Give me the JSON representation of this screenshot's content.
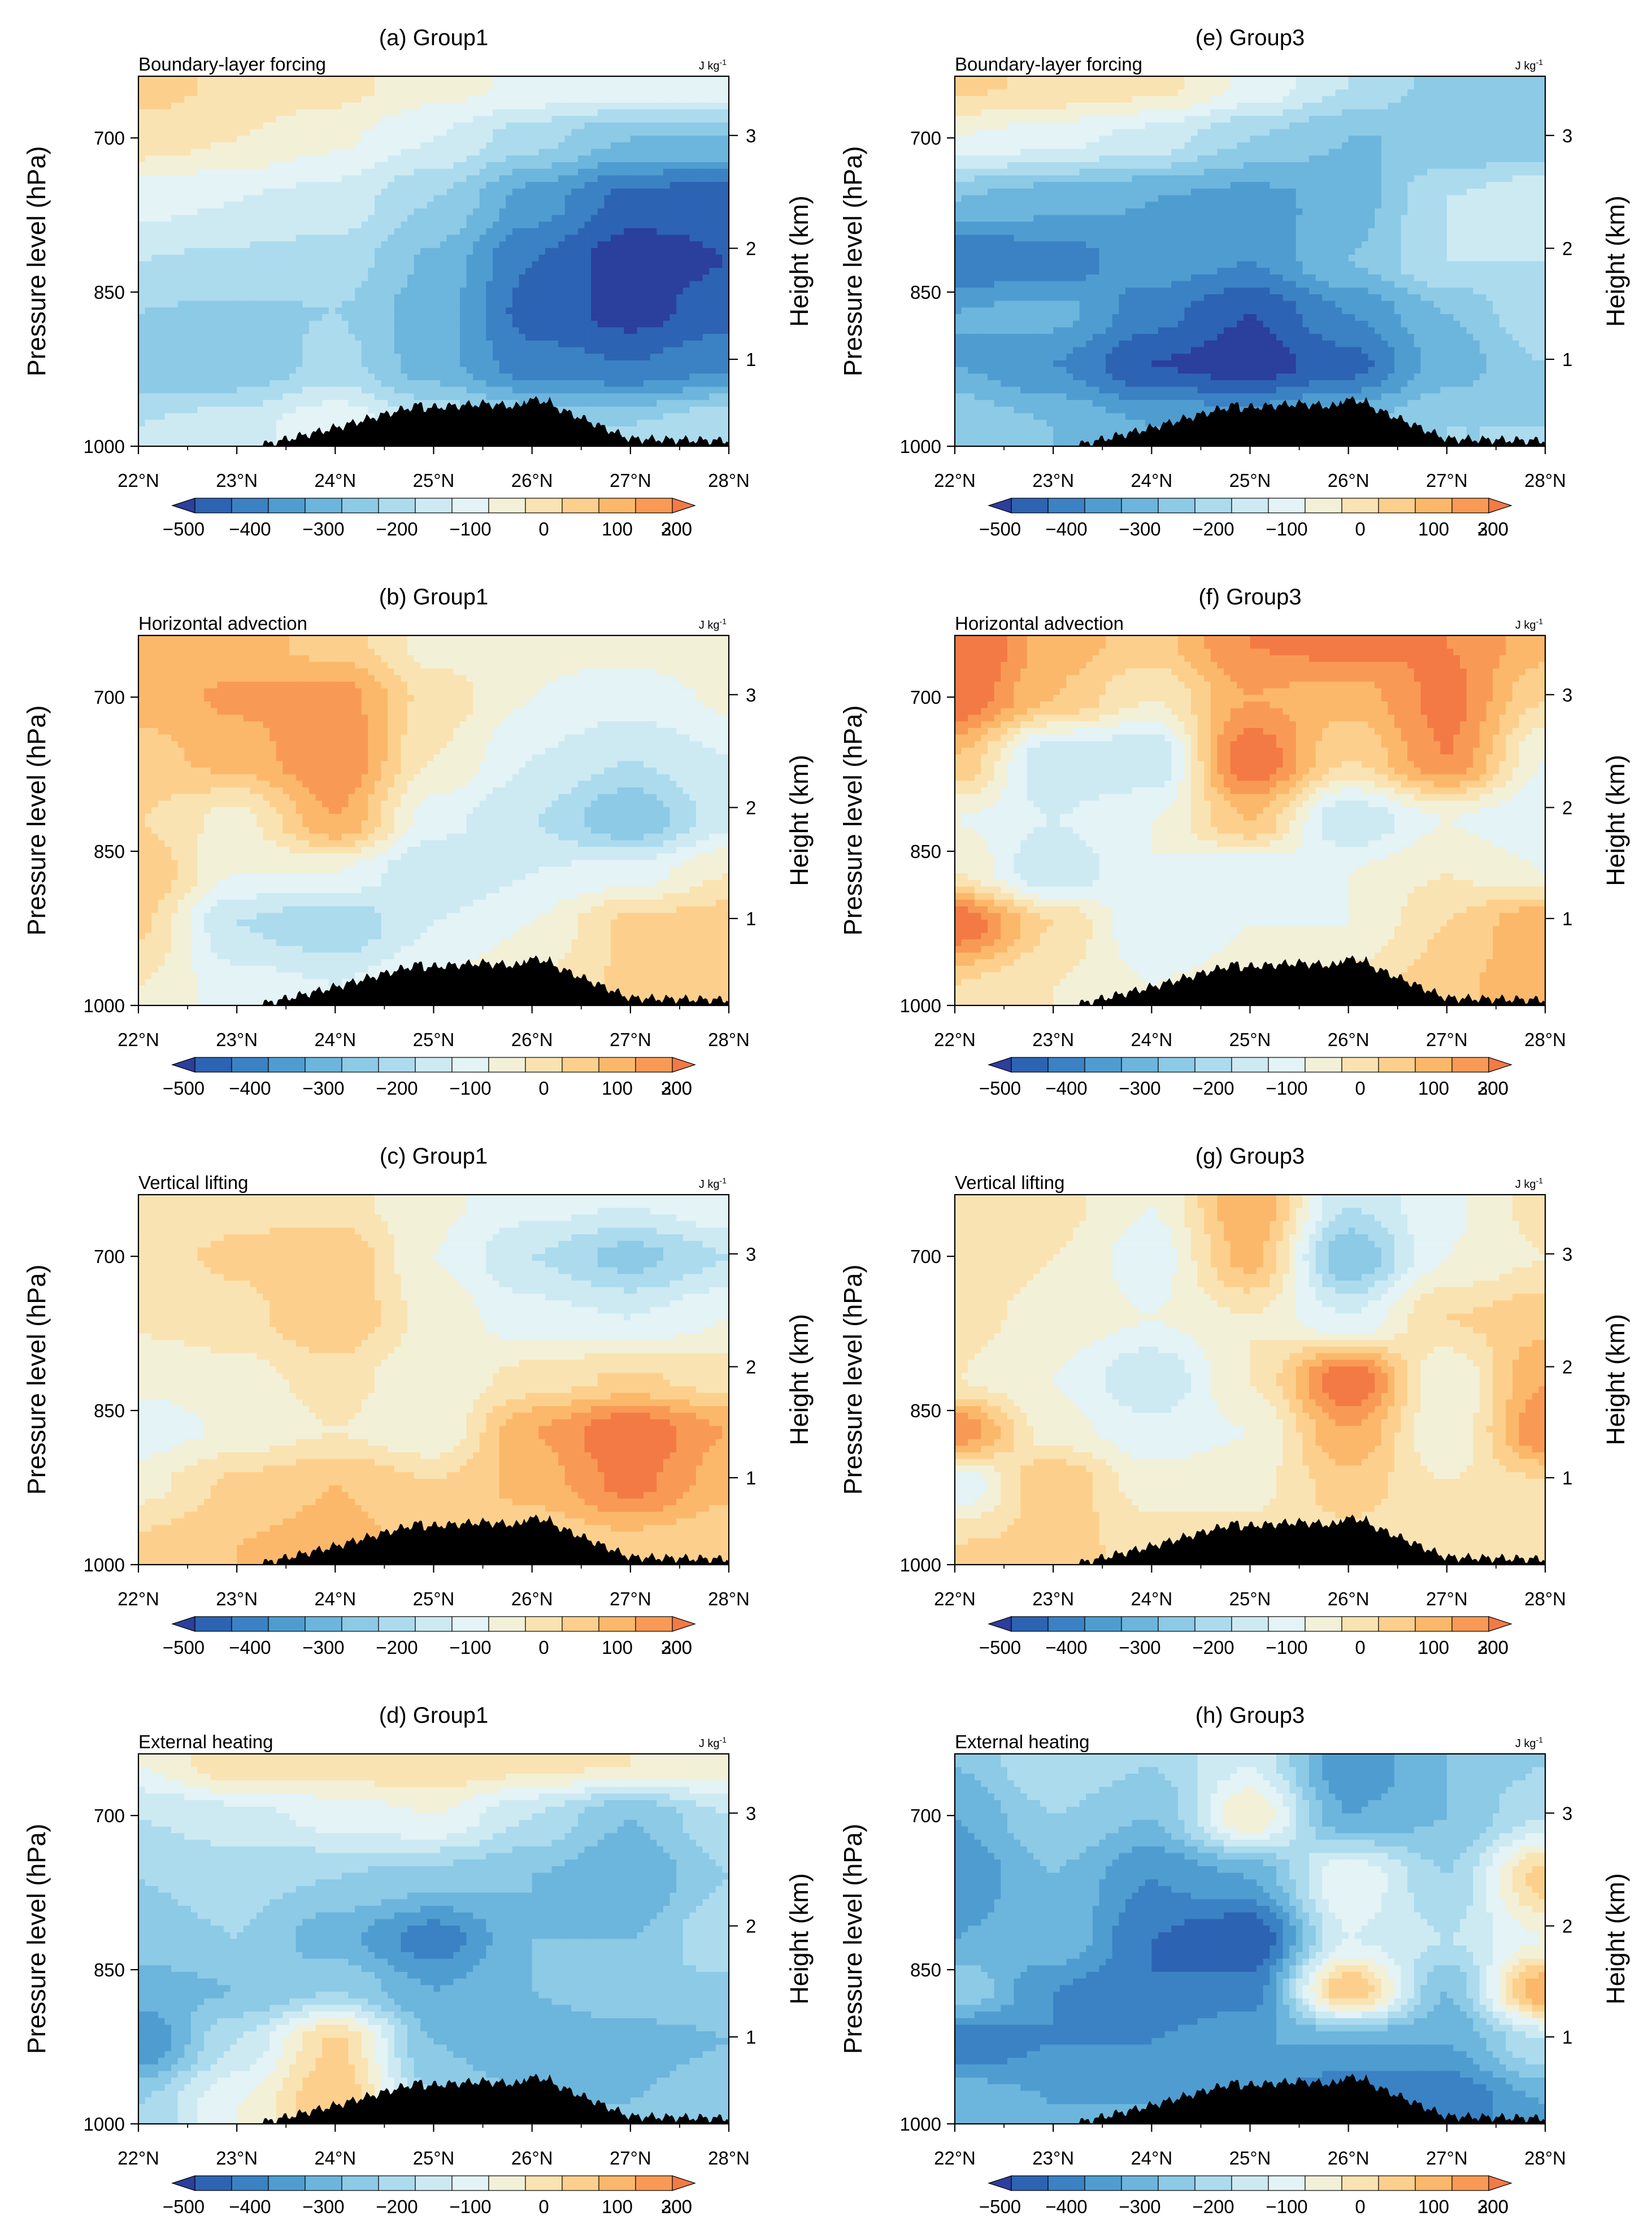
{
  "figure": {
    "colorbar_levels": [
      -500,
      -450,
      -400,
      -350,
      -300,
      -250,
      -200,
      -150,
      -100,
      -50,
      0,
      50,
      100,
      150,
      200,
      250,
      300
    ],
    "colorbar_tick_labels": [
      "−500",
      "−400",
      "−300",
      "−200",
      "−100",
      "0",
      "100",
      "200",
      "300"
    ],
    "colorbar_tick_values": [
      -500,
      -400,
      -300,
      -200,
      -100,
      0,
      100,
      200,
      300
    ],
    "colors": [
      "#2b3f9c",
      "#2d63b3",
      "#3a82c4",
      "#4f9dd0",
      "#6cb5dc",
      "#8ccae6",
      "#acdbee",
      "#cdeaf3",
      "#e3f3f6",
      "#f3f0d8",
      "#fae3b2",
      "#fcd08c",
      "#fbb86a",
      "#f89a55",
      "#f37a45"
    ],
    "terrain_color": "#000000"
  },
  "chart_data": [
    {
      "id": "a",
      "type": "contour",
      "title": "(a) Group1",
      "subtitle": "Boundary-layer forcing",
      "units": "J kg",
      "units_sup": "-1",
      "ylabel": "Pressure level (hPa)",
      "ylabel_right": "Height (km)",
      "x_ticks": [
        "22°N",
        "23°N",
        "24°N",
        "25°N",
        "26°N",
        "27°N",
        "28°N"
      ],
      "x_values": [
        22,
        23,
        24,
        25,
        26,
        27,
        28
      ],
      "xlim": [
        22,
        28
      ],
      "y_ticks": [
        "700",
        "850",
        "1000"
      ],
      "y_tick_values": [
        700,
        850,
        1000
      ],
      "ylim": [
        640,
        1000
      ],
      "height_ticks": [
        "3",
        "2",
        "1"
      ],
      "field": [
        [
          70,
          40,
          20,
          -30,
          -60,
          -70,
          -60
        ],
        [
          30,
          0,
          -40,
          -100,
          -180,
          -250,
          -250
        ],
        [
          -80,
          -100,
          -120,
          -200,
          -320,
          -420,
          -430
        ],
        [
          -150,
          -160,
          -170,
          -260,
          -400,
          -480,
          -450
        ],
        [
          -200,
          -210,
          -200,
          -280,
          -420,
          -470,
          -420
        ],
        [
          -250,
          -250,
          -180,
          -280,
          -380,
          -400,
          -360
        ],
        [
          -150,
          -120,
          -60,
          -150,
          -200,
          -200,
          -150
        ]
      ],
      "field_pressure": [
        650,
        700,
        760,
        820,
        870,
        920,
        980
      ]
    },
    {
      "id": "b",
      "type": "contour",
      "title": "(b) Group1",
      "subtitle": "Horizontal advection",
      "units": "J kg",
      "units_sup": "-1",
      "ylabel": "Pressure level (hPa)",
      "ylabel_right": "Height (km)",
      "x_ticks": [
        "22°N",
        "23°N",
        "24°N",
        "25°N",
        "26°N",
        "27°N",
        "28°N"
      ],
      "x_values": [
        22,
        23,
        24,
        25,
        26,
        27,
        28
      ],
      "xlim": [
        22,
        28
      ],
      "y_ticks": [
        "700",
        "850",
        "1000"
      ],
      "y_tick_values": [
        700,
        850,
        1000
      ],
      "ylim": [
        640,
        1000
      ],
      "height_ticks": [
        "3",
        "2",
        "1"
      ],
      "field": [
        [
          100,
          120,
          80,
          -20,
          -40,
          -30,
          0
        ],
        [
          120,
          160,
          180,
          30,
          -50,
          -80,
          -40
        ],
        [
          80,
          120,
          200,
          0,
          -100,
          -150,
          -100
        ],
        [
          50,
          -20,
          150,
          -80,
          -150,
          -250,
          -120
        ],
        [
          100,
          -50,
          -50,
          -150,
          -100,
          -80,
          0
        ],
        [
          60,
          -150,
          -200,
          -100,
          -50,
          60,
          80
        ],
        [
          0,
          -80,
          -100,
          -50,
          0,
          60,
          100
        ]
      ],
      "field_pressure": [
        650,
        700,
        760,
        820,
        870,
        920,
        980
      ]
    },
    {
      "id": "c",
      "type": "contour",
      "title": "(c) Group1",
      "subtitle": "Vertical lifting",
      "units": "J kg",
      "units_sup": "-1",
      "ylabel": "Pressure level (hPa)",
      "ylabel_right": "Height (km)",
      "x_ticks": [
        "22°N",
        "23°N",
        "24°N",
        "25°N",
        "26°N",
        "27°N",
        "28°N"
      ],
      "x_values": [
        22,
        23,
        24,
        25,
        26,
        27,
        28
      ],
      "xlim": [
        22,
        28
      ],
      "y_ticks": [
        "700",
        "850",
        "1000"
      ],
      "y_tick_values": [
        700,
        850,
        1000
      ],
      "ylim": [
        640,
        1000
      ],
      "height_ticks": [
        "3",
        "2",
        "1"
      ],
      "field": [
        [
          20,
          30,
          20,
          -40,
          -80,
          -100,
          -60
        ],
        [
          30,
          60,
          100,
          -50,
          -150,
          -220,
          -150
        ],
        [
          10,
          30,
          100,
          -20,
          -80,
          -100,
          -50
        ],
        [
          -40,
          -20,
          20,
          -40,
          20,
          60,
          30
        ],
        [
          -80,
          -40,
          0,
          -50,
          150,
          250,
          150
        ],
        [
          -20,
          60,
          100,
          50,
          120,
          220,
          120
        ],
        [
          60,
          100,
          120,
          80,
          60,
          80,
          50
        ]
      ],
      "field_pressure": [
        650,
        700,
        760,
        820,
        870,
        920,
        980
      ]
    },
    {
      "id": "d",
      "type": "contour",
      "title": "(d) Group1",
      "subtitle": "External heating",
      "units": "J kg",
      "units_sup": "-1",
      "ylabel": "Pressure level (hPa)",
      "ylabel_right": "Height (km)",
      "x_ticks": [
        "22°N",
        "23°N",
        "24°N",
        "25°N",
        "26°N",
        "27°N",
        "28°N"
      ],
      "x_values": [
        22,
        23,
        24,
        25,
        26,
        27,
        28
      ],
      "xlim": [
        22,
        28
      ],
      "y_ticks": [
        "700",
        "850",
        "1000"
      ],
      "y_tick_values": [
        700,
        850,
        1000
      ],
      "ylim": [
        640,
        1000
      ],
      "height_ticks": [
        "3",
        "2",
        "1"
      ],
      "field": [
        [
          -50,
          40,
          30,
          40,
          20,
          0,
          -20
        ],
        [
          -150,
          -120,
          -80,
          -50,
          -150,
          -250,
          -150
        ],
        [
          -200,
          -180,
          -200,
          -220,
          -250,
          -300,
          -200
        ],
        [
          -220,
          -200,
          -280,
          -380,
          -250,
          -250,
          -150
        ],
        [
          -280,
          -250,
          -200,
          -300,
          -250,
          -200,
          -220
        ],
        [
          -350,
          -150,
          60,
          -250,
          -300,
          -280,
          -250
        ],
        [
          -200,
          -50,
          100,
          -200,
          -250,
          -250,
          -200
        ]
      ],
      "field_pressure": [
        650,
        700,
        760,
        820,
        870,
        920,
        980
      ]
    },
    {
      "id": "e",
      "type": "contour",
      "title": "(e) Group3",
      "subtitle": "Boundary-layer forcing",
      "units": "J kg",
      "units_sup": "-1",
      "ylabel": "Pressure level (hPa)",
      "ylabel_right": "Height (km)",
      "x_ticks": [
        "22°N",
        "23°N",
        "24°N",
        "25°N",
        "26°N",
        "27°N",
        "28°N"
      ],
      "x_values": [
        22,
        23,
        24,
        25,
        26,
        27,
        28
      ],
      "xlim": [
        22,
        28
      ],
      "y_ticks": [
        "700",
        "850",
        "1000"
      ],
      "y_tick_values": [
        700,
        850,
        1000
      ],
      "ylim": [
        640,
        1000
      ],
      "height_ticks": [
        "3",
        "2",
        "1"
      ],
      "field": [
        [
          60,
          40,
          20,
          -60,
          -150,
          -220,
          -250
        ],
        [
          -50,
          -80,
          -120,
          -200,
          -250,
          -250,
          -250
        ],
        [
          -250,
          -280,
          -300,
          -320,
          -280,
          -150,
          -100
        ],
        [
          -400,
          -380,
          -320,
          -350,
          -250,
          -150,
          -150
        ],
        [
          -300,
          -280,
          -380,
          -450,
          -350,
          -250,
          -150
        ],
        [
          -300,
          -350,
          -450,
          -480,
          -420,
          -280,
          -200
        ],
        [
          -200,
          -250,
          -300,
          -300,
          -250,
          -200,
          -200
        ]
      ],
      "field_pressure": [
        650,
        700,
        760,
        820,
        870,
        920,
        980
      ]
    },
    {
      "id": "f",
      "type": "contour",
      "title": "(f) Group3",
      "subtitle": "Horizontal advection",
      "units": "J kg",
      "units_sup": "-1",
      "ylabel": "Pressure level (hPa)",
      "ylabel_right": "Height (km)",
      "x_ticks": [
        "22°N",
        "23°N",
        "24°N",
        "25°N",
        "26°N",
        "27°N",
        "28°N"
      ],
      "x_values": [
        22,
        23,
        24,
        25,
        26,
        27,
        28
      ],
      "xlim": [
        22,
        28
      ],
      "y_ticks": [
        "700",
        "850",
        "1000"
      ],
      "y_tick_values": [
        700,
        850,
        1000
      ],
      "ylim": [
        640,
        1000
      ],
      "height_ticks": [
        "3",
        "2",
        "1"
      ],
      "field": [
        [
          300,
          120,
          80,
          200,
          220,
          200,
          120
        ],
        [
          250,
          100,
          0,
          150,
          120,
          220,
          50
        ],
        [
          100,
          -150,
          -150,
          250,
          50,
          200,
          -50
        ],
        [
          -50,
          -100,
          -50,
          100,
          -150,
          -50,
          -100
        ],
        [
          0,
          -150,
          -50,
          -100,
          -50,
          0,
          -50
        ],
        [
          250,
          50,
          -100,
          -50,
          -50,
          50,
          150
        ],
        [
          50,
          0,
          -50,
          -30,
          20,
          80,
          150
        ]
      ],
      "field_pressure": [
        650,
        700,
        760,
        820,
        870,
        920,
        980
      ]
    },
    {
      "id": "g",
      "type": "contour",
      "title": "(g) Group3",
      "subtitle": "Vertical lifting",
      "units": "J kg",
      "units_sup": "-1",
      "ylabel": "Pressure level (hPa)",
      "ylabel_right": "Height (km)",
      "x_ticks": [
        "22°N",
        "23°N",
        "24°N",
        "25°N",
        "26°N",
        "27°N",
        "28°N"
      ],
      "x_values": [
        22,
        23,
        24,
        25,
        26,
        27,
        28
      ],
      "xlim": [
        22,
        28
      ],
      "y_ticks": [
        "700",
        "850",
        "1000"
      ],
      "y_tick_values": [
        700,
        850,
        1000
      ],
      "ylim": [
        640,
        1000
      ],
      "height_ticks": [
        "3",
        "2",
        "1"
      ],
      "field": [
        [
          30,
          20,
          -50,
          150,
          -150,
          -60,
          20
        ],
        [
          40,
          0,
          -80,
          120,
          -250,
          -50,
          0
        ],
        [
          20,
          -20,
          -50,
          0,
          -100,
          50,
          80
        ],
        [
          0,
          -50,
          -150,
          0,
          250,
          -50,
          150
        ],
        [
          200,
          -30,
          -80,
          -50,
          150,
          -50,
          200
        ],
        [
          -100,
          100,
          -30,
          -20,
          80,
          0,
          50
        ],
        [
          50,
          60,
          40,
          20,
          30,
          20,
          30
        ]
      ],
      "field_pressure": [
        650,
        700,
        760,
        820,
        870,
        920,
        980
      ]
    },
    {
      "id": "h",
      "type": "contour",
      "title": "(h) Group3",
      "subtitle": "External heating",
      "units": "J kg",
      "units_sup": "-1",
      "ylabel": "Pressure level (hPa)",
      "ylabel_right": "Height (km)",
      "x_ticks": [
        "22°N",
        "23°N",
        "24°N",
        "25°N",
        "26°N",
        "27°N",
        "28°N"
      ],
      "x_values": [
        22,
        23,
        24,
        25,
        26,
        27,
        28
      ],
      "xlim": [
        22,
        28
      ],
      "y_ticks": [
        "700",
        "850",
        "1000"
      ],
      "y_tick_values": [
        700,
        850,
        1000
      ],
      "ylim": [
        640,
        1000
      ],
      "height_ticks": [
        "3",
        "2",
        "1"
      ],
      "field": [
        [
          -250,
          -150,
          -200,
          -100,
          -350,
          -250,
          -200
        ],
        [
          -300,
          -200,
          -250,
          0,
          -300,
          -250,
          -150
        ],
        [
          -350,
          -250,
          -350,
          -300,
          -50,
          -200,
          80
        ],
        [
          -300,
          -250,
          -400,
          -450,
          -100,
          -150,
          -50
        ],
        [
          -200,
          -350,
          -400,
          -380,
          100,
          -250,
          150
        ],
        [
          -400,
          -350,
          -350,
          -300,
          -300,
          -300,
          -150
        ],
        [
          -250,
          -300,
          -300,
          -350,
          -400,
          -400,
          -300
        ]
      ],
      "field_pressure": [
        650,
        700,
        760,
        820,
        870,
        920,
        980
      ]
    }
  ]
}
